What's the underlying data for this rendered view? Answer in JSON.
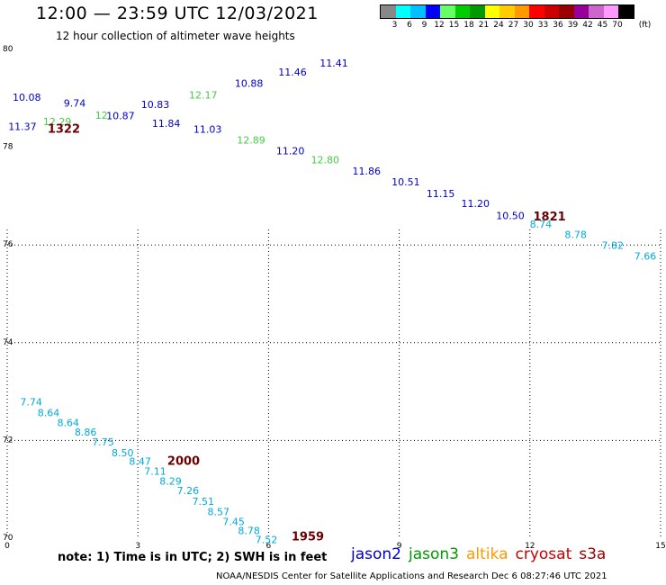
{
  "header": {
    "title": "12:00 — 23:59 UTC 12/03/2021",
    "subtitle": "12 hour collection of altimeter wave heights"
  },
  "scale": {
    "unit": "(ft)",
    "ticks": [
      "3",
      "6",
      "9",
      "12",
      "15",
      "18",
      "21",
      "24",
      "27",
      "30",
      "33",
      "36",
      "39",
      "42",
      "45",
      "70"
    ],
    "colors": [
      "#888888",
      "#00ffff",
      "#00c0ff",
      "#0000ff",
      "#66ff66",
      "#00cc00",
      "#009900",
      "#ffff00",
      "#ffcc00",
      "#ff9900",
      "#ff0000",
      "#cc0000",
      "#990000",
      "#990099",
      "#cc66cc",
      "#ff99ff",
      "#000000"
    ]
  },
  "chart_data": {
    "type": "scatter",
    "x_ticks": [
      {
        "label": "0",
        "value": 0
      },
      {
        "label": "3",
        "value": 3
      },
      {
        "label": "6",
        "value": 6
      },
      {
        "label": "9",
        "value": 9
      },
      {
        "label": "12",
        "value": 12
      },
      {
        "label": "15",
        "value": 15
      }
    ],
    "y_ticks": [
      {
        "label": "70",
        "value": 70
      },
      {
        "label": "72",
        "value": 72
      },
      {
        "label": "74",
        "value": 74
      },
      {
        "label": "76",
        "value": 76
      },
      {
        "label": "78",
        "value": 78
      },
      {
        "label": "80",
        "value": 80
      }
    ],
    "xlim": [
      0,
      15
    ],
    "ylim": [
      70,
      80
    ],
    "grid": true,
    "points": [
      {
        "x": 0.35,
        "y": 78.35,
        "v": "11.37",
        "color": "#0000cc"
      },
      {
        "x": 0.45,
        "y": 78.95,
        "v": "10.08",
        "color": "#0000cc"
      },
      {
        "x": 1.15,
        "y": 78.45,
        "v": "12.29",
        "color": "#44cc44"
      },
      {
        "x": 1.55,
        "y": 78.83,
        "v": "9.74",
        "color": "#0000cc"
      },
      {
        "x": 2.2,
        "y": 78.58,
        "v": "12.",
        "color": "#44cc44"
      },
      {
        "x": 2.6,
        "y": 78.57,
        "v": "10.87",
        "color": "#0000cc"
      },
      {
        "x": 3.4,
        "y": 78.8,
        "v": "10.83",
        "color": "#0000cc"
      },
      {
        "x": 3.65,
        "y": 78.42,
        "v": "11.84",
        "color": "#0000cc"
      },
      {
        "x": 4.5,
        "y": 79.0,
        "v": "12.17",
        "color": "#44cc44"
      },
      {
        "x": 4.6,
        "y": 78.3,
        "v": "11.03",
        "color": "#0000cc"
      },
      {
        "x": 5.55,
        "y": 79.24,
        "v": "10.88",
        "color": "#0000cc"
      },
      {
        "x": 5.6,
        "y": 78.08,
        "v": "12.89",
        "color": "#44cc44"
      },
      {
        "x": 6.55,
        "y": 79.47,
        "v": "11.46",
        "color": "#0000cc"
      },
      {
        "x": 6.5,
        "y": 77.85,
        "v": "11.20",
        "color": "#0000cc"
      },
      {
        "x": 7.5,
        "y": 79.65,
        "v": "11.41",
        "color": "#0000cc"
      },
      {
        "x": 7.3,
        "y": 77.67,
        "v": "12.80",
        "color": "#44cc44"
      },
      {
        "x": 8.25,
        "y": 77.44,
        "v": "11.86",
        "color": "#0000cc"
      },
      {
        "x": 9.15,
        "y": 77.22,
        "v": "10.51",
        "color": "#0000cc"
      },
      {
        "x": 9.95,
        "y": 76.98,
        "v": "11.15",
        "color": "#0000cc"
      },
      {
        "x": 10.75,
        "y": 76.78,
        "v": "11.20",
        "color": "#0000cc"
      },
      {
        "x": 11.55,
        "y": 76.53,
        "v": "10.50",
        "color": "#0000cc"
      },
      {
        "x": 12.25,
        "y": 76.35,
        "v": "8.74",
        "color": "#00aadd"
      },
      {
        "x": 13.05,
        "y": 76.14,
        "v": "8.78",
        "color": "#00aadd"
      },
      {
        "x": 13.9,
        "y": 75.92,
        "v": "7.82",
        "color": "#00aadd"
      },
      {
        "x": 14.65,
        "y": 75.7,
        "v": "7.66",
        "color": "#00aadd"
      },
      {
        "x": 0.55,
        "y": 72.72,
        "v": "7.74",
        "color": "#00aadd"
      },
      {
        "x": 0.95,
        "y": 72.5,
        "v": "8.64",
        "color": "#00aadd"
      },
      {
        "x": 1.4,
        "y": 72.29,
        "v": "8.64",
        "color": "#00aadd"
      },
      {
        "x": 1.8,
        "y": 72.1,
        "v": "8.86",
        "color": "#00aadd"
      },
      {
        "x": 2.2,
        "y": 71.9,
        "v": "7.75",
        "color": "#00aadd"
      },
      {
        "x": 2.65,
        "y": 71.68,
        "v": "8.50",
        "color": "#00aadd"
      },
      {
        "x": 3.05,
        "y": 71.5,
        "v": "8.47",
        "color": "#00aadd"
      },
      {
        "x": 3.4,
        "y": 71.3,
        "v": "7.11",
        "color": "#00aadd"
      },
      {
        "x": 3.75,
        "y": 71.1,
        "v": "8.29",
        "color": "#00aadd"
      },
      {
        "x": 4.15,
        "y": 70.9,
        "v": "7.26",
        "color": "#00aadd"
      },
      {
        "x": 4.5,
        "y": 70.68,
        "v": "7.51",
        "color": "#00aadd"
      },
      {
        "x": 4.85,
        "y": 70.47,
        "v": "8.57",
        "color": "#00aadd"
      },
      {
        "x": 5.2,
        "y": 70.27,
        "v": "7.45",
        "color": "#00aadd"
      },
      {
        "x": 5.55,
        "y": 70.08,
        "v": "8.78",
        "color": "#00aadd"
      },
      {
        "x": 5.95,
        "y": 69.9,
        "v": "7.52",
        "color": "#00aadd"
      }
    ],
    "time_labels": [
      {
        "x": 1.3,
        "y": 78.3,
        "v": "1322"
      },
      {
        "x": 12.45,
        "y": 76.5,
        "v": "1821"
      },
      {
        "x": 4.05,
        "y": 71.5,
        "v": "2000"
      },
      {
        "x": 6.9,
        "y": 69.95,
        "v": "1959"
      }
    ]
  },
  "footer": {
    "note": "note: 1) Time is in UTC; 2) SWH is in feet",
    "credit": "NOAA/NESDIS Center for Satellite Applications and Research     Dec  6 08:27:46 UTC 2021",
    "legend": [
      {
        "label": "jason2",
        "color": "#0000cc"
      },
      {
        "label": "jason3",
        "color": "#009900"
      },
      {
        "label": "altika",
        "color": "#ff9900"
      },
      {
        "label": "cryosat",
        "color": "#cc0000"
      },
      {
        "label": "s3a",
        "color": "#990000"
      }
    ]
  }
}
